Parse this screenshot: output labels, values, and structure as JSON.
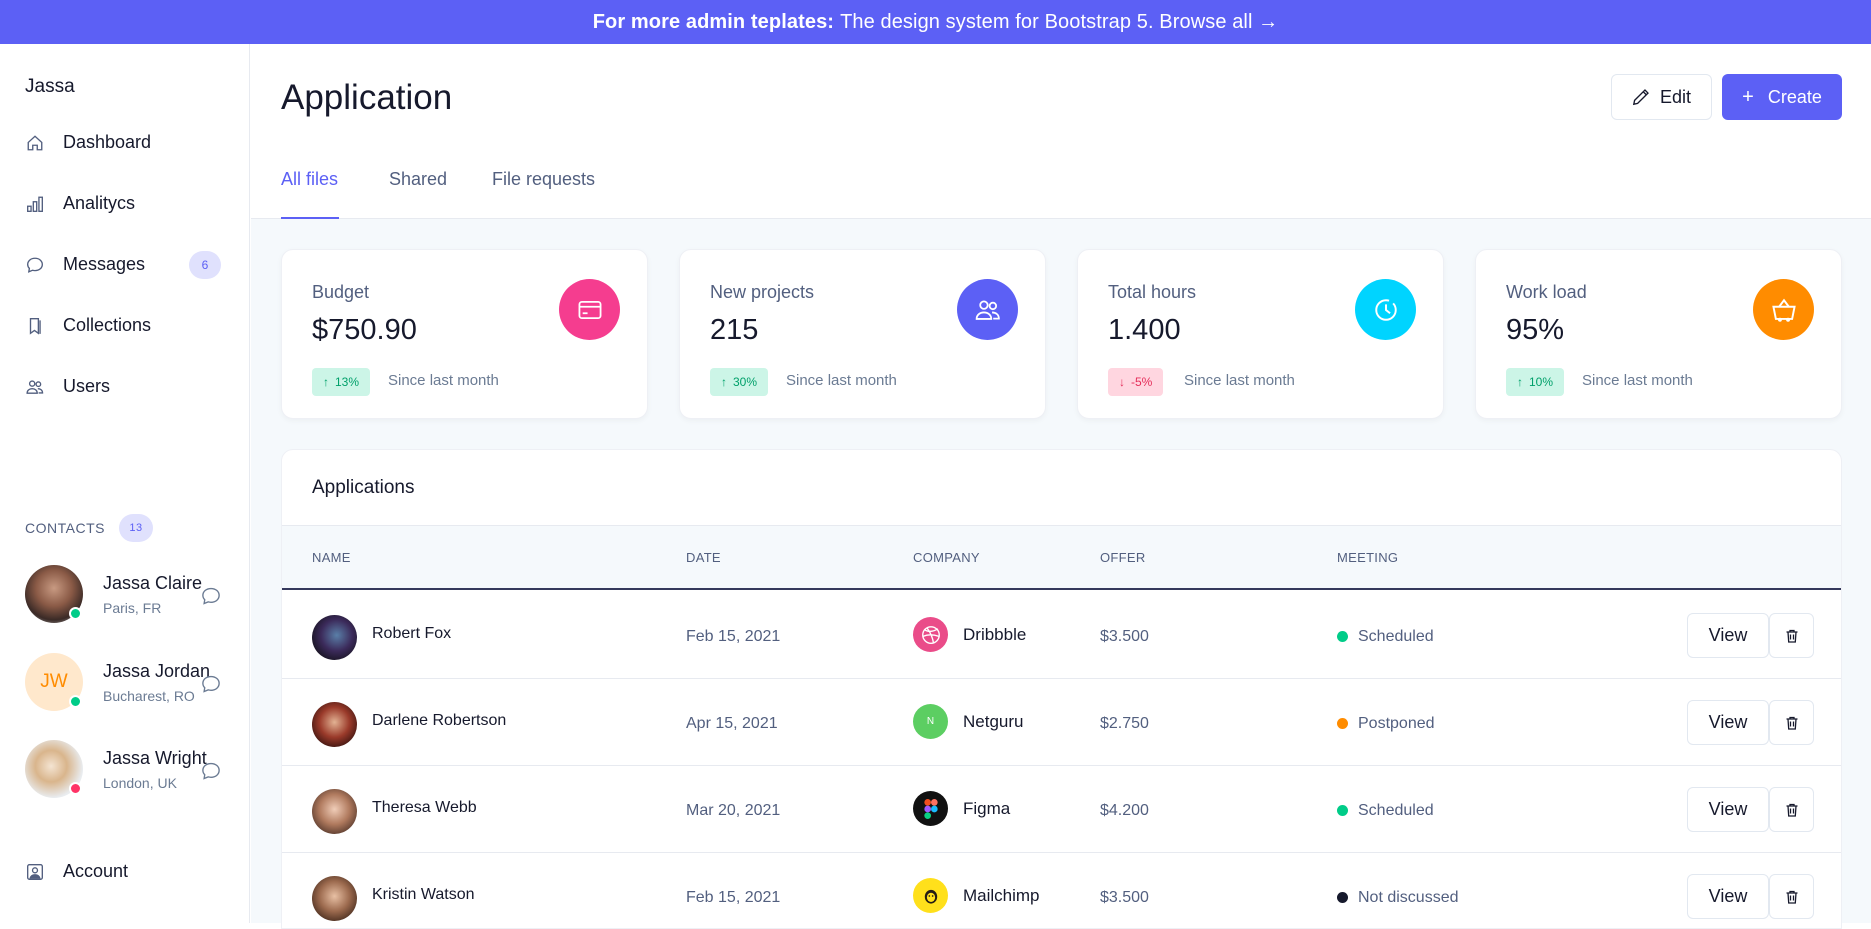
{
  "banner": {
    "bold": "For more admin teplates:",
    "rest": "The design system for Bootstrap 5. Browse all →"
  },
  "sidebar": {
    "brand": "Jassa",
    "items": [
      {
        "label": "Dashboard",
        "icon": "house-icon"
      },
      {
        "label": "Analitycs",
        "icon": "bar-chart-icon"
      },
      {
        "label": "Messages",
        "icon": "chat-icon",
        "badge": "6"
      },
      {
        "label": "Collections",
        "icon": "bookmarks-icon"
      },
      {
        "label": "Users",
        "icon": "people-icon"
      }
    ],
    "contacts_title": "CONTACTS",
    "contacts_count": "13",
    "contacts": [
      {
        "name": "Jassa Claire",
        "location": "Paris, FR",
        "status_color": "#00cc88"
      },
      {
        "name": "Jassa Jordan",
        "location": "Bucharest, RO",
        "initials": "JW",
        "status_color": "#00cc88"
      },
      {
        "name": "Jassa Wright",
        "location": "London, UK",
        "status_color": "#ff3366"
      }
    ],
    "account": "Account"
  },
  "header": {
    "title": "Application",
    "edit_label": "Edit",
    "create_label": "Create",
    "tabs": [
      "All files",
      "Shared",
      "File requests"
    ]
  },
  "stats": [
    {
      "label": "Budget",
      "value": "$750.90",
      "change": "13%",
      "trend": "up",
      "since": "Since last month",
      "icon": "credit-card-icon",
      "color": "#f53d8f"
    },
    {
      "label": "New projects",
      "value": "215",
      "change": "30%",
      "trend": "up",
      "since": "Since last month",
      "icon": "people-icon",
      "color": "#5c60f5"
    },
    {
      "label": "Total hours",
      "value": "1.400",
      "change": "-5%",
      "trend": "down",
      "since": "Since last month",
      "icon": "clock-icon",
      "color": "#00d4ff"
    },
    {
      "label": "Work load",
      "value": "95%",
      "change": "10%",
      "trend": "up",
      "since": "Since last month",
      "icon": "basket-icon",
      "color": "#ff8c00"
    }
  ],
  "applications": {
    "title": "Applications",
    "columns": [
      "NAME",
      "DATE",
      "COMPANY",
      "OFFER",
      "MEETING"
    ],
    "view_label": "View",
    "rows": [
      {
        "name": "Robert Fox",
        "date": "Feb 15, 2021",
        "company": "Dribbble",
        "offer": "$3.500",
        "meeting": "Scheduled",
        "meeting_color": "#00cc88",
        "logo_color": "#ea4c89"
      },
      {
        "name": "Darlene Robertson",
        "date": "Apr 15, 2021",
        "company": "Netguru",
        "offer": "$2.750",
        "meeting": "Postponed",
        "meeting_color": "#ff8c00",
        "logo_color": "#5cce62",
        "logo_text": "N"
      },
      {
        "name": "Theresa Webb",
        "date": "Mar 20, 2021",
        "company": "Figma",
        "offer": "$4.200",
        "meeting": "Scheduled",
        "meeting_color": "#00cc88",
        "logo_color": "#111111"
      },
      {
        "name": "Kristin Watson",
        "date": "Feb 15, 2021",
        "company": "Mailchimp",
        "offer": "$3.500",
        "meeting": "Not discussed",
        "meeting_color": "#16192c",
        "logo_color": "#ffe01b"
      }
    ]
  }
}
